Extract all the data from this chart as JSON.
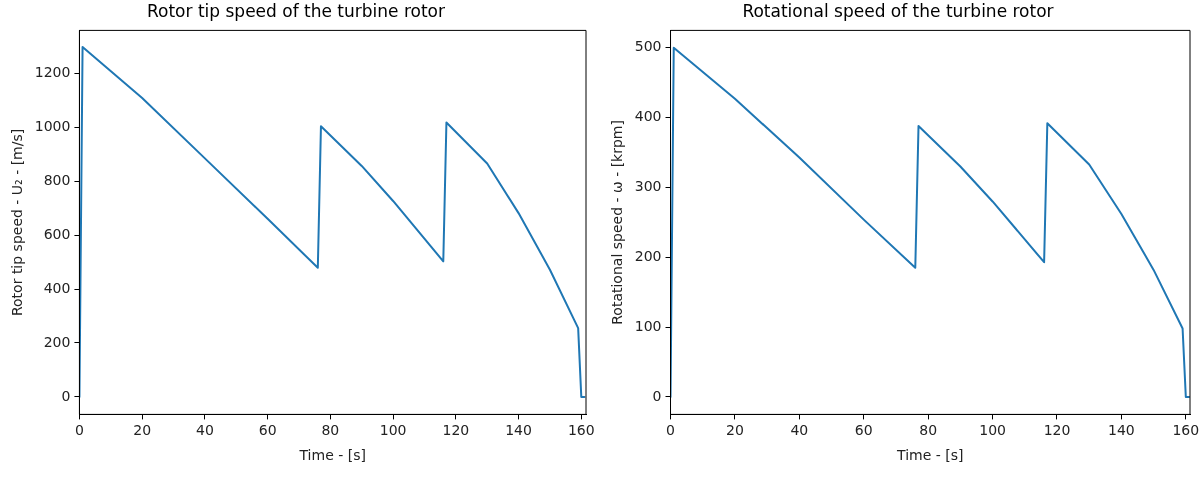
{
  "chart_data": [
    {
      "type": "line",
      "title": "Rotor tip speed of the turbine rotor",
      "xlabel": "Time - [s]",
      "ylabel": "Rotor tip speed - U₂ - [m/s]",
      "xlim": [
        0,
        161.5
      ],
      "ylim": [
        -65,
        1360
      ],
      "xticks": [
        0,
        20,
        40,
        60,
        80,
        100,
        120,
        140,
        160
      ],
      "yticks": [
        0,
        200,
        400,
        600,
        800,
        1000,
        1200
      ],
      "grid": false,
      "legend": false,
      "marker": "none",
      "line_style": "solid",
      "series": [
        {
          "color": "#1f77b4",
          "x": [
            0,
            1,
            20,
            40,
            60,
            76,
            77,
            90,
            100,
            116,
            117,
            130,
            140,
            150,
            159,
            160,
            161
          ],
          "values": [
            0,
            1298,
            1109,
            885,
            661,
            479,
            1004,
            857,
            727,
            503,
            1018,
            866,
            682,
            472,
            255,
            0,
            0
          ]
        }
      ]
    },
    {
      "type": "line",
      "title": "Rotational speed of the turbine rotor",
      "xlabel": "Time - [s]",
      "ylabel": "Rotational speed - ω - [krpm]",
      "xlim": [
        0,
        161.3
      ],
      "ylim": [
        -25,
        525
      ],
      "xticks": [
        0,
        20,
        40,
        60,
        80,
        100,
        120,
        140,
        160
      ],
      "yticks": [
        0,
        100,
        200,
        300,
        400,
        500
      ],
      "grid": false,
      "legend": false,
      "marker": "none",
      "line_style": "solid",
      "series": [
        {
          "color": "#1f77b4",
          "x": [
            0,
            1,
            20,
            40,
            60,
            76,
            77,
            90,
            100,
            116,
            117,
            130,
            140,
            150,
            159,
            160,
            161
          ],
          "values": [
            0,
            500,
            427,
            343,
            254,
            185,
            388,
            330,
            280,
            193,
            392,
            333,
            262,
            182,
            98,
            0,
            0
          ]
        }
      ]
    }
  ]
}
